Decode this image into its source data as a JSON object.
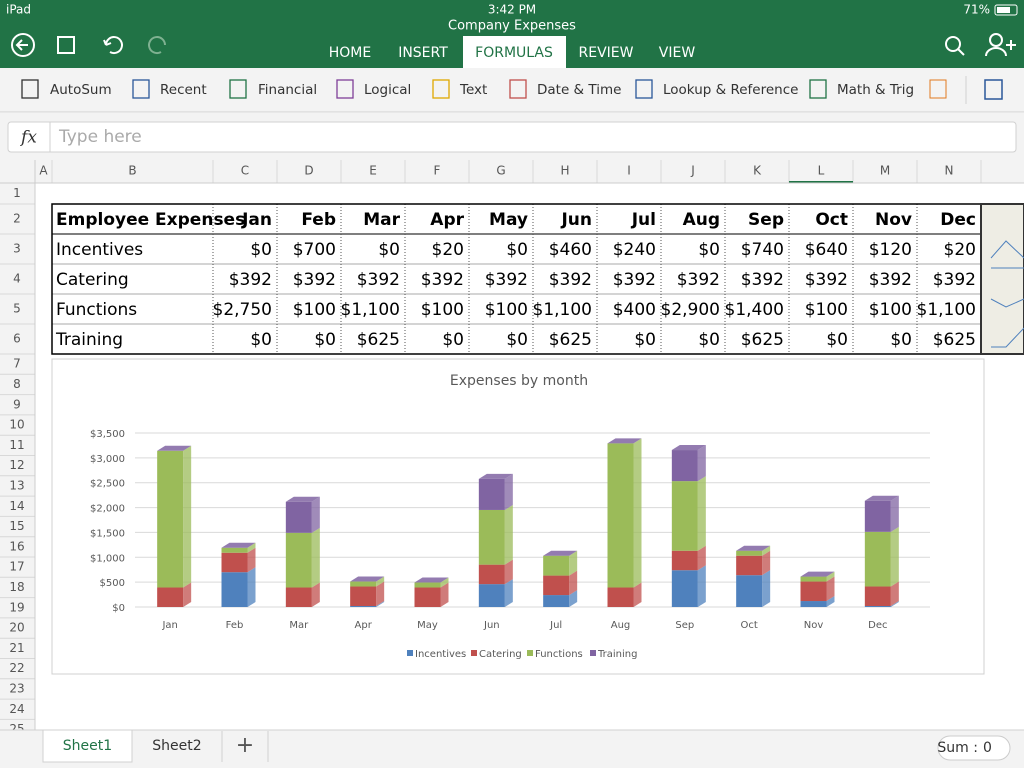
{
  "status_bar": {
    "device": "iPad",
    "time": "3:42 PM",
    "battery": "71%"
  },
  "document_title": "Company Expenses",
  "tabs": {
    "items": [
      "HOME",
      "INSERT",
      "FORMULAS",
      "REVIEW",
      "VIEW"
    ],
    "active": 2
  },
  "ribbon": [
    "AutoSum",
    "Recent",
    "Financial",
    "Logical",
    "Text",
    "Date & Time",
    "Lookup & Reference",
    "Math & Trig"
  ],
  "formula_bar": {
    "label": "fx",
    "placeholder": "Type here"
  },
  "column_headers": [
    "A",
    "B",
    "C",
    "D",
    "E",
    "F",
    "G",
    "H",
    "I",
    "J",
    "K",
    "L",
    "M",
    "N"
  ],
  "row_headers": [
    1,
    2,
    3,
    4,
    5,
    6,
    7,
    8,
    9,
    10,
    11,
    12,
    13,
    14,
    15,
    16,
    17,
    18,
    19,
    20,
    21,
    22,
    23,
    24,
    25
  ],
  "table": {
    "header": [
      "Employee Expenses",
      "Jan",
      "Feb",
      "Mar",
      "Apr",
      "May",
      "Jun",
      "Jul",
      "Aug",
      "Sep",
      "Oct",
      "Nov",
      "Dec"
    ],
    "rows": [
      [
        "Incentives",
        "$0",
        "$700",
        "$0",
        "$20",
        "$0",
        "$460",
        "$240",
        "$0",
        "$740",
        "$640",
        "$120",
        "$20"
      ],
      [
        "Catering",
        "$392",
        "$392",
        "$392",
        "$392",
        "$392",
        "$392",
        "$392",
        "$392",
        "$392",
        "$392",
        "$392",
        "$392"
      ],
      [
        "Functions",
        "$2,750",
        "$100",
        "$1,100",
        "$100",
        "$100",
        "$1,100",
        "$400",
        "$2,900",
        "$1,400",
        "$100",
        "$100",
        "$1,100"
      ],
      [
        "Training",
        "$0",
        "$0",
        "$625",
        "$0",
        "$0",
        "$625",
        "$0",
        "$0",
        "$625",
        "$0",
        "$0",
        "$625"
      ]
    ]
  },
  "chart_data": {
    "type": "bar",
    "stacked": true,
    "title": "Expenses by month",
    "categories": [
      "Jan",
      "Feb",
      "Mar",
      "Apr",
      "May",
      "Jun",
      "Jul",
      "Aug",
      "Sep",
      "Oct",
      "Nov",
      "Dec"
    ],
    "series": [
      {
        "name": "Incentives",
        "color": "#4f81bd",
        "values": [
          0,
          700,
          0,
          20,
          0,
          460,
          240,
          0,
          740,
          640,
          120,
          20
        ]
      },
      {
        "name": "Catering",
        "color": "#c0504d",
        "values": [
          392,
          392,
          392,
          392,
          392,
          392,
          392,
          392,
          392,
          392,
          392,
          392
        ]
      },
      {
        "name": "Functions",
        "color": "#9bbb59",
        "values": [
          2750,
          100,
          1100,
          100,
          100,
          1100,
          400,
          2900,
          1400,
          100,
          100,
          1100
        ]
      },
      {
        "name": "Training",
        "color": "#8064a2",
        "values": [
          0,
          0,
          625,
          0,
          0,
          625,
          0,
          0,
          625,
          0,
          0,
          625
        ]
      }
    ],
    "ylim": [
      0,
      3500
    ],
    "yticks": [
      {
        "value": 0,
        "label": "$0"
      },
      {
        "value": 500,
        "label": "$500"
      },
      {
        "value": 1000,
        "label": "$1,000"
      },
      {
        "value": 1500,
        "label": "$1,500"
      },
      {
        "value": 2000,
        "label": "$2,000"
      },
      {
        "value": 2500,
        "label": "$2,500"
      },
      {
        "value": 3000,
        "label": "$3,000"
      },
      {
        "value": 3500,
        "label": "$3,500"
      }
    ],
    "grid": true,
    "legend": "bottom"
  },
  "sheets": {
    "items": [
      "Sheet1",
      "Sheet2"
    ],
    "active": 0
  },
  "status": {
    "label": "Sum :",
    "value": 0
  }
}
